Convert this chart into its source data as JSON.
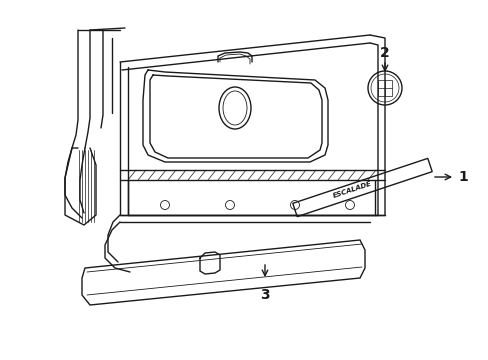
{
  "bg_color": "#ffffff",
  "line_color": "#1a1a1a",
  "lw": 1.0,
  "tlw": 0.6,
  "label_1": "1",
  "label_2": "2",
  "label_3": "3",
  "lfs": 10
}
